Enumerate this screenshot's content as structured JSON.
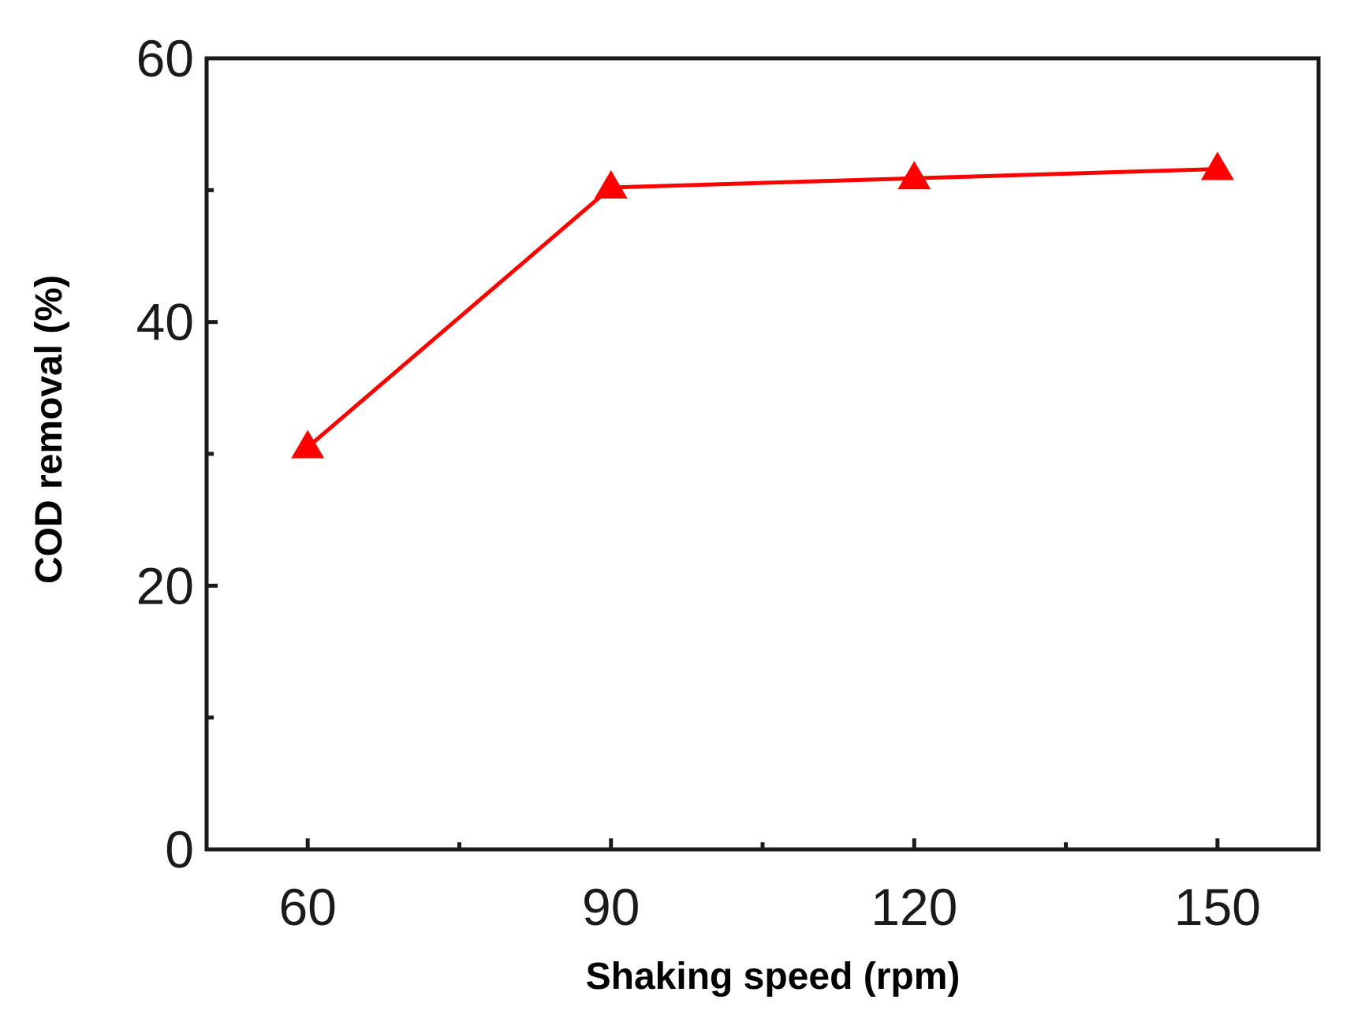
{
  "chart_data": {
    "type": "line",
    "title": "",
    "xlabel": "Shaking speed (rpm)",
    "ylabel": "COD removal (%)",
    "x": [
      60,
      90,
      120,
      150
    ],
    "xlim": [
      50,
      160
    ],
    "ylim": [
      0,
      60
    ],
    "x_major_ticks": [
      60,
      90,
      120,
      150
    ],
    "x_minor_ticks": [
      75,
      105,
      135
    ],
    "y_major_ticks": [
      0,
      20,
      40,
      60
    ],
    "y_minor_ticks": [
      10,
      30,
      50
    ],
    "x_tick_labels": [
      "60",
      "90",
      "120",
      "150"
    ],
    "y_tick_labels": [
      "0",
      "20",
      "40",
      "60"
    ],
    "grid": false,
    "legend": "none",
    "series": [
      {
        "name": "COD removal",
        "marker": "triangle-up",
        "color": "#ff0000",
        "values": [
          30.5,
          50.2,
          50.9,
          51.6
        ]
      }
    ]
  }
}
